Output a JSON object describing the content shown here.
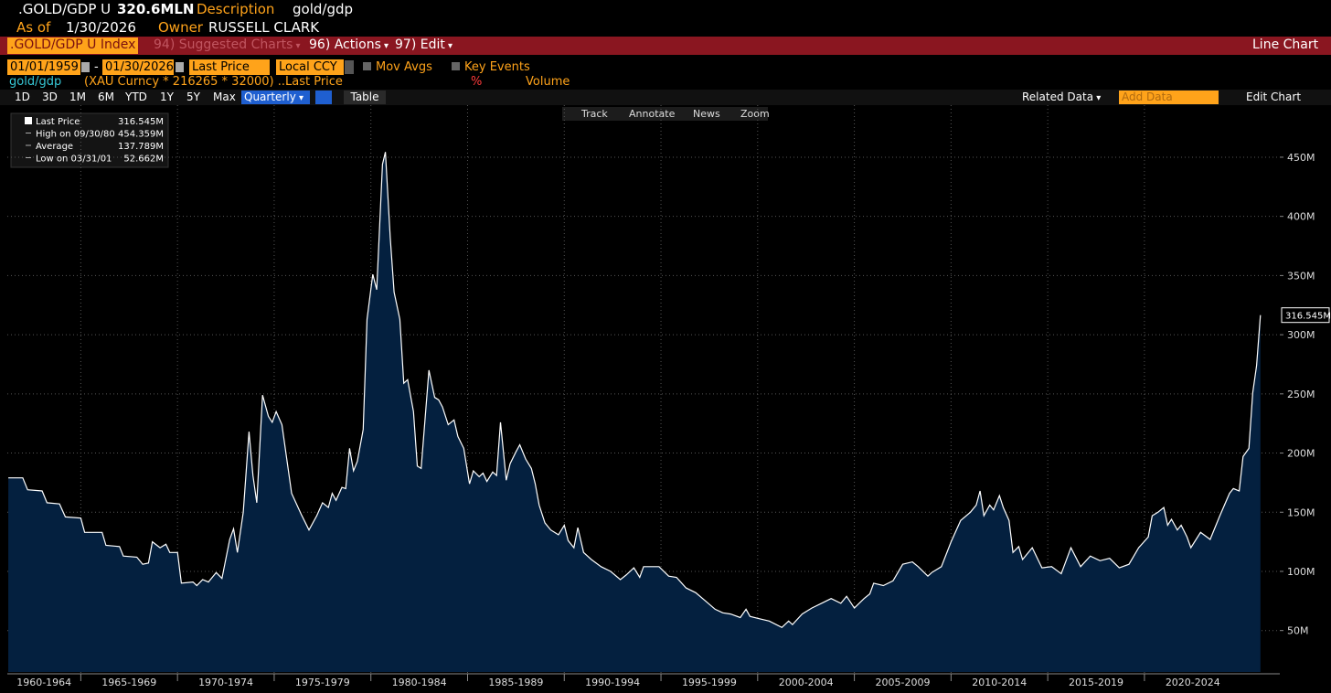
{
  "header": {
    "ticker": ".GOLD/GDP U",
    "value": "320.6MLN",
    "description_label": "Description",
    "description": "gold/gdp",
    "as_of_label": "As of",
    "as_of": "1/30/2026",
    "owner_label": "Owner",
    "owner": "RUSSELL CLARK"
  },
  "menu_bar": {
    "security": ".GOLD/GDP U Index",
    "items": [
      "94) Suggested Charts",
      "96) Actions",
      "97) Edit"
    ],
    "chart_type": "Line Chart"
  },
  "controls": {
    "start_date": "01/01/1959",
    "date_separator": "-",
    "end_date": "01/30/2026",
    "field": "Last Price",
    "currency": "Local CCY",
    "options": [
      "Mov Avgs",
      "Key Events"
    ]
  },
  "study_row": {
    "name": "gold/gdp",
    "formula": "(XAU Curncy * 216265 * 32000) ...",
    "field": "Last Price",
    "percent": "%",
    "volume": "Volume"
  },
  "toolbar": {
    "periods": [
      "1D",
      "3D",
      "1M",
      "6M",
      "YTD",
      "1Y",
      "5Y",
      "Max"
    ],
    "frequency": "Quarterly",
    "table": "Table",
    "related": "Related Data",
    "add_data": "Add Data",
    "edit_chart": "Edit Chart"
  },
  "chart_tools": [
    "Track",
    "Annotate",
    "News",
    "Zoom"
  ],
  "chart_data": {
    "type": "area",
    "stats": [
      {
        "label": "Last Price",
        "value": "316.545M"
      },
      {
        "label": "High on 09/30/80",
        "value": "454.359M"
      },
      {
        "label": "Average",
        "value": "137.789M"
      },
      {
        "label": "Low on 03/31/01",
        "value": "52.662M"
      }
    ],
    "x": [
      1961.25,
      1962.0,
      1962.25,
      1963.0,
      1963.25,
      1963.9,
      1964.2,
      1965.0,
      1965.2,
      1966.1,
      1966.3,
      1967.0,
      1967.2,
      1967.9,
      1968.2,
      1968.5,
      1968.7,
      1969.1,
      1969.4,
      1969.6,
      1970.0,
      1970.2,
      1970.8,
      1971.0,
      1971.3,
      1971.6,
      1972.0,
      1972.3,
      1972.7,
      1972.9,
      1973.1,
      1973.4,
      1973.7,
      1973.9,
      1974.1,
      1974.4,
      1974.7,
      1974.9,
      1975.1,
      1975.4,
      1975.9,
      1976.4,
      1976.8,
      1977.2,
      1977.5,
      1977.8,
      1978.0,
      1978.2,
      1978.5,
      1978.7,
      1978.9,
      1979.1,
      1979.3,
      1979.6,
      1979.8,
      1980.1,
      1980.3,
      1980.6,
      1980.75,
      1981.0,
      1981.2,
      1981.5,
      1981.7,
      1981.9,
      1982.2,
      1982.4,
      1982.6,
      1982.8,
      1983.0,
      1983.3,
      1983.5,
      1983.7,
      1984.0,
      1984.3,
      1984.5,
      1984.8,
      1985.1,
      1985.3,
      1985.6,
      1985.8,
      1986.0,
      1986.3,
      1986.5,
      1986.7,
      1987.0,
      1987.2,
      1987.5,
      1987.7,
      1988.0,
      1988.3,
      1988.5,
      1988.7,
      1989.0,
      1989.3,
      1989.7,
      1990.0,
      1990.2,
      1990.5,
      1990.7,
      1991.0,
      1991.4,
      1991.9,
      1992.4,
      1992.9,
      1993.2,
      1993.6,
      1993.9,
      1994.1,
      1994.9,
      1995.4,
      1995.8,
      1996.3,
      1996.8,
      1997.3,
      1997.8,
      1998.2,
      1998.6,
      1999.1,
      1999.4,
      1999.6,
      2000.1,
      2000.6,
      2001.25,
      2001.6,
      2001.8,
      2002.3,
      2002.8,
      2003.3,
      2003.8,
      2004.3,
      2004.6,
      2005.0,
      2005.5,
      2005.8,
      2006.0,
      2006.5,
      2007.0,
      2007.5,
      2008.0,
      2008.3,
      2008.8,
      2009.0,
      2009.5,
      2010.0,
      2010.5,
      2011.0,
      2011.3,
      2011.5,
      2011.7,
      2012.0,
      2012.2,
      2012.5,
      2012.7,
      2013.0,
      2013.2,
      2013.5,
      2013.7,
      2014.2,
      2014.7,
      2015.2,
      2015.7,
      2016.2,
      2016.7,
      2017.2,
      2017.7,
      2018.2,
      2018.7,
      2019.2,
      2019.7,
      2020.2,
      2020.4,
      2020.7,
      2021.0,
      2021.2,
      2021.4,
      2021.7,
      2021.9,
      2022.2,
      2022.4,
      2022.9,
      2023.4,
      2023.9,
      2024.4,
      2024.6,
      2024.9,
      2025.1,
      2025.4,
      2025.6,
      2025.8,
      2026.0
    ],
    "series": [
      {
        "name": "gold/gdp",
        "color": "#ffffff",
        "fill": "#04203f",
        "values": [
          179,
          179,
          169,
          168,
          158,
          157,
          146,
          145,
          133,
          133,
          122,
          121,
          113,
          112,
          106,
          107,
          125,
          120,
          123,
          116,
          116,
          90,
          91,
          88,
          93,
          91,
          99,
          94,
          127,
          136,
          116,
          150,
          218,
          181,
          158,
          249,
          231,
          226,
          235,
          224,
          166,
          148,
          135,
          147,
          158,
          154,
          166,
          160,
          171,
          170,
          204,
          185,
          193,
          220,
          313,
          351,
          338,
          444,
          454.359,
          382,
          336,
          313,
          259,
          262,
          235,
          189,
          187,
          228,
          270,
          247,
          245,
          239,
          224,
          228,
          214,
          204,
          174,
          185,
          180,
          183,
          176,
          184,
          181,
          226,
          177,
          191,
          201,
          207,
          195,
          187,
          174,
          156,
          141,
          135,
          131,
          139,
          126,
          120,
          137,
          116,
          110,
          104,
          100,
          93,
          97,
          103,
          95,
          104,
          104,
          96,
          95,
          86,
          82,
          75,
          68,
          65,
          64,
          61,
          68,
          62,
          60,
          58,
          52.662,
          58,
          55,
          64,
          69,
          73,
          77,
          73,
          79,
          69,
          77,
          81,
          90,
          88,
          92,
          106,
          108,
          104,
          96,
          99,
          104,
          125,
          143,
          150,
          156,
          168,
          147,
          156,
          152,
          164,
          154,
          143,
          116,
          121,
          110,
          120,
          103,
          104,
          98,
          120,
          104,
          113,
          109,
          111,
          103,
          106,
          120,
          129,
          147,
          150,
          154,
          139,
          144,
          135,
          139,
          129,
          120,
          133,
          127,
          147,
          166,
          170,
          168,
          197,
          204,
          251,
          274,
          316.545
        ]
      }
    ],
    "xlim": [
      1961.2,
      2027
    ],
    "xticks": [
      {
        "value": 1960,
        "label": "1960-1964"
      },
      {
        "value": 1965,
        "label": "1965-1969"
      },
      {
        "value": 1970,
        "label": "1970-1974"
      },
      {
        "value": 1975,
        "label": "1975-1979"
      },
      {
        "value": 1980,
        "label": "1980-1984"
      },
      {
        "value": 1985,
        "label": "1985-1989"
      },
      {
        "value": 1990,
        "label": "1990-1994"
      },
      {
        "value": 1995,
        "label": "1995-1999"
      },
      {
        "value": 2000,
        "label": "2000-2004"
      },
      {
        "value": 2005,
        "label": "2005-2009"
      },
      {
        "value": 2010,
        "label": "2010-2014"
      },
      {
        "value": 2015,
        "label": "2015-2019"
      },
      {
        "value": 2020,
        "label": "2020-2024"
      }
    ],
    "ylim": [
      15,
      494
    ],
    "yticks": [
      {
        "value": 50,
        "label": "50M"
      },
      {
        "value": 100,
        "label": "100M"
      },
      {
        "value": 150,
        "label": "150M"
      },
      {
        "value": 200,
        "label": "200M"
      },
      {
        "value": 250,
        "label": "250M"
      },
      {
        "value": 300,
        "label": "300M"
      },
      {
        "value": 350,
        "label": "350M"
      },
      {
        "value": 400,
        "label": "400M"
      },
      {
        "value": 450,
        "label": "450M"
      }
    ],
    "grid": true
  }
}
